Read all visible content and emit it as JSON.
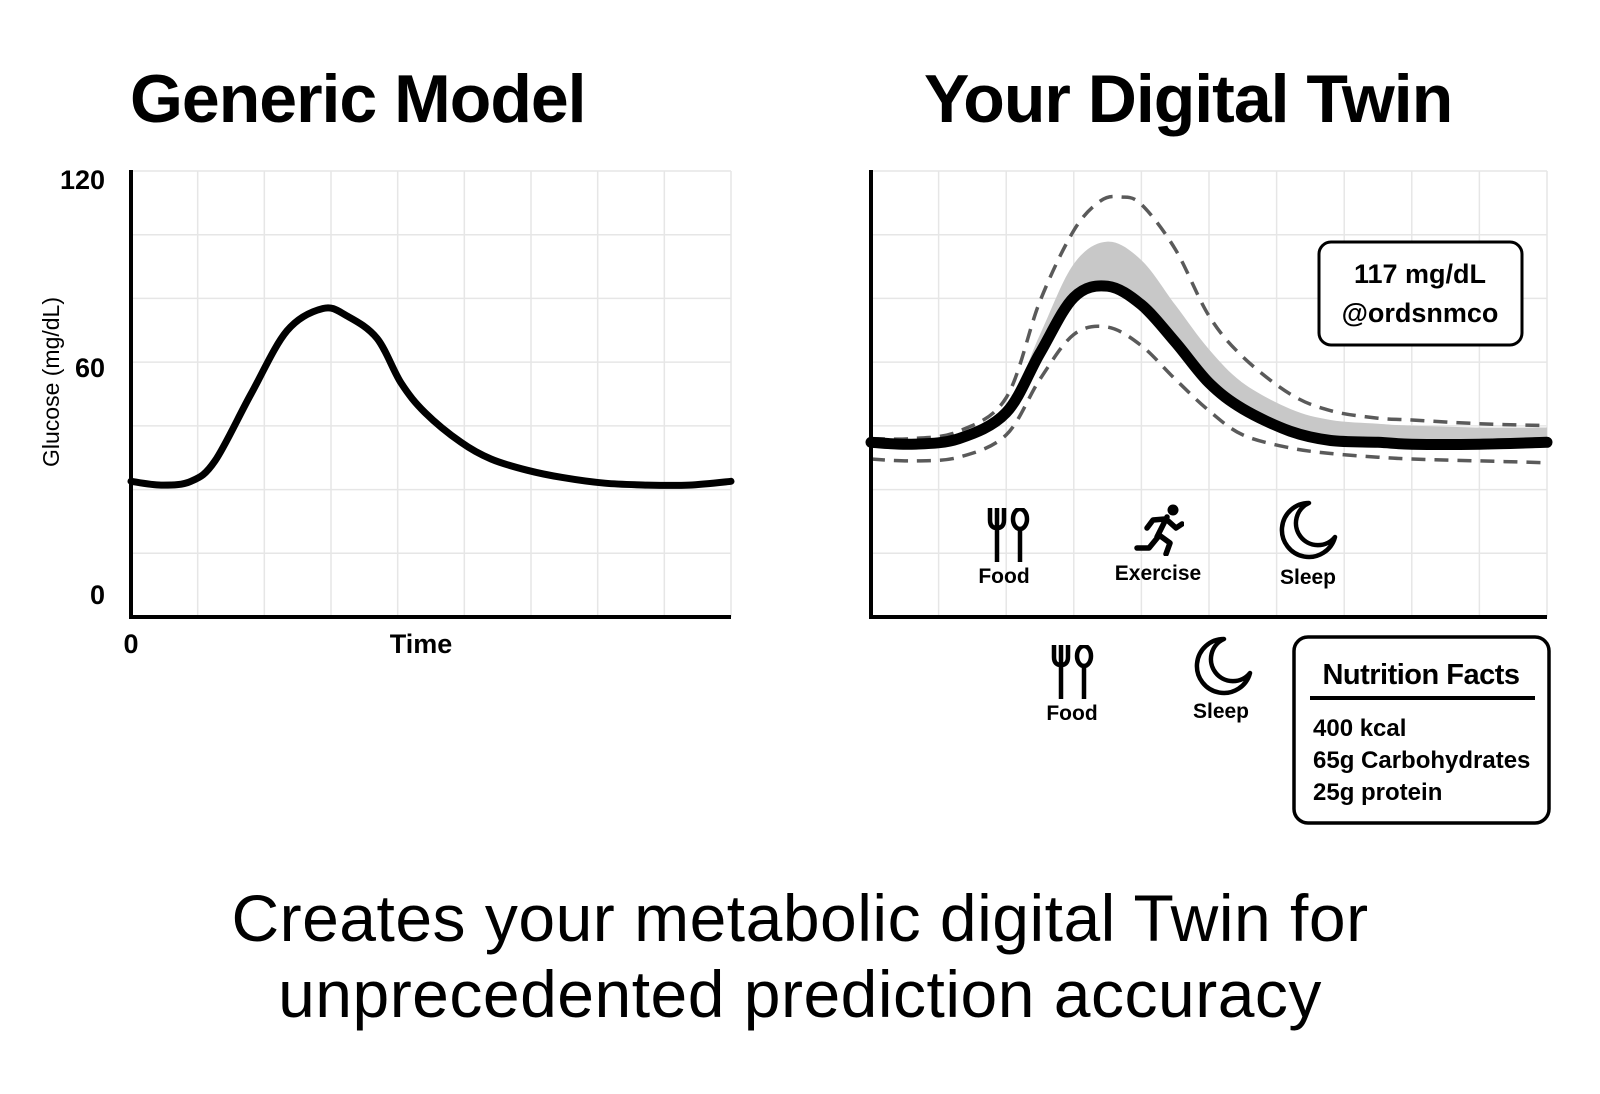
{
  "caption": {
    "line1": "Creates your metabolic digital Twin for",
    "line2": "unprecedented prediction accuracy"
  },
  "chart_data": [
    {
      "type": "line",
      "title": "Generic Model",
      "xlabel": "Time",
      "ylabel": "Glucose (mg/dL)",
      "x_ticks": [
        "0"
      ],
      "y_ticks": [
        "0",
        "60",
        "120"
      ],
      "ylim": [
        0,
        120
      ],
      "xlim": [
        0,
        100
      ],
      "grid": true,
      "series": [
        {
          "x": [
            0,
            5,
            10,
            14,
            20,
            26,
            32,
            36,
            41,
            45,
            49,
            55,
            60,
            66,
            72,
            79,
            86,
            93,
            100
          ],
          "y": [
            36.5,
            35.5,
            36.5,
            42,
            60,
            77,
            83,
            81,
            75,
            63,
            55,
            47,
            42.5,
            39.5,
            37.5,
            36,
            35.5,
            35.5,
            36.5
          ]
        }
      ]
    },
    {
      "type": "line",
      "title": "Your Digital Twin",
      "ylim": [
        0,
        120
      ],
      "xlim": [
        0,
        100
      ],
      "grid": true,
      "series": [
        {
          "style": "solid-bold",
          "x": [
            0,
            6,
            13,
            20,
            25,
            30,
            35,
            40,
            45,
            50,
            55,
            62,
            68,
            75,
            80,
            90,
            100
          ],
          "y": [
            47,
            46.5,
            48,
            55,
            71,
            86,
            89,
            84,
            74,
            63,
            56,
            50,
            47.5,
            47,
            46.5,
            46.5,
            47
          ]
        },
        {
          "style": "band-upper",
          "x": [
            0,
            6,
            13,
            20,
            25,
            30,
            35,
            40,
            45,
            50,
            55,
            62,
            68,
            75,
            80,
            90,
            100
          ],
          "y": [
            47,
            46.5,
            48,
            56,
            76,
            95,
            101,
            96,
            84,
            72,
            63,
            56,
            53,
            52,
            51.5,
            51,
            51
          ]
        },
        {
          "style": "dashed-upper",
          "x": [
            0,
            6,
            13,
            20,
            25,
            30,
            34,
            37,
            40,
            45,
            50,
            55,
            62,
            68,
            75,
            80,
            90,
            100
          ],
          "y": [
            48,
            48,
            50,
            59,
            85,
            104,
            112,
            113,
            111,
            99,
            81,
            70,
            60,
            55.5,
            53.5,
            53,
            52,
            51.5
          ]
        },
        {
          "style": "dashed-lower",
          "x": [
            0,
            6,
            13,
            20,
            25,
            30,
            35,
            40,
            45,
            50,
            55,
            62,
            68,
            75,
            80,
            90,
            100
          ],
          "y": [
            42.5,
            42,
            43,
            49,
            64,
            76,
            78,
            73,
            64,
            55.5,
            49,
            45.5,
            44,
            43,
            42.5,
            42,
            41.5
          ]
        }
      ],
      "events": [
        {
          "label": "Food",
          "icon": "fork-spoon-icon"
        },
        {
          "label": "Exercise",
          "icon": "running-person-icon"
        },
        {
          "label": "Sleep",
          "icon": "crescent-moon-icon"
        }
      ],
      "callout": {
        "line1": "117 mg/dL",
        "line2": "@ordsnmco"
      }
    }
  ],
  "legend_icons": [
    {
      "label": "Food",
      "icon": "fork-spoon-icon"
    },
    {
      "label": "Sleep",
      "icon": "crescent-moon-icon"
    }
  ],
  "nutrition": {
    "title": "Nutrition Facts",
    "items": [
      "400 kcal",
      "65g Carbohydrates",
      "25g protein"
    ]
  },
  "colors": {
    "line": "#000000",
    "band": "#c8c8c8",
    "dashed": "#5a5a5a",
    "grid": "#e6e6e6"
  }
}
